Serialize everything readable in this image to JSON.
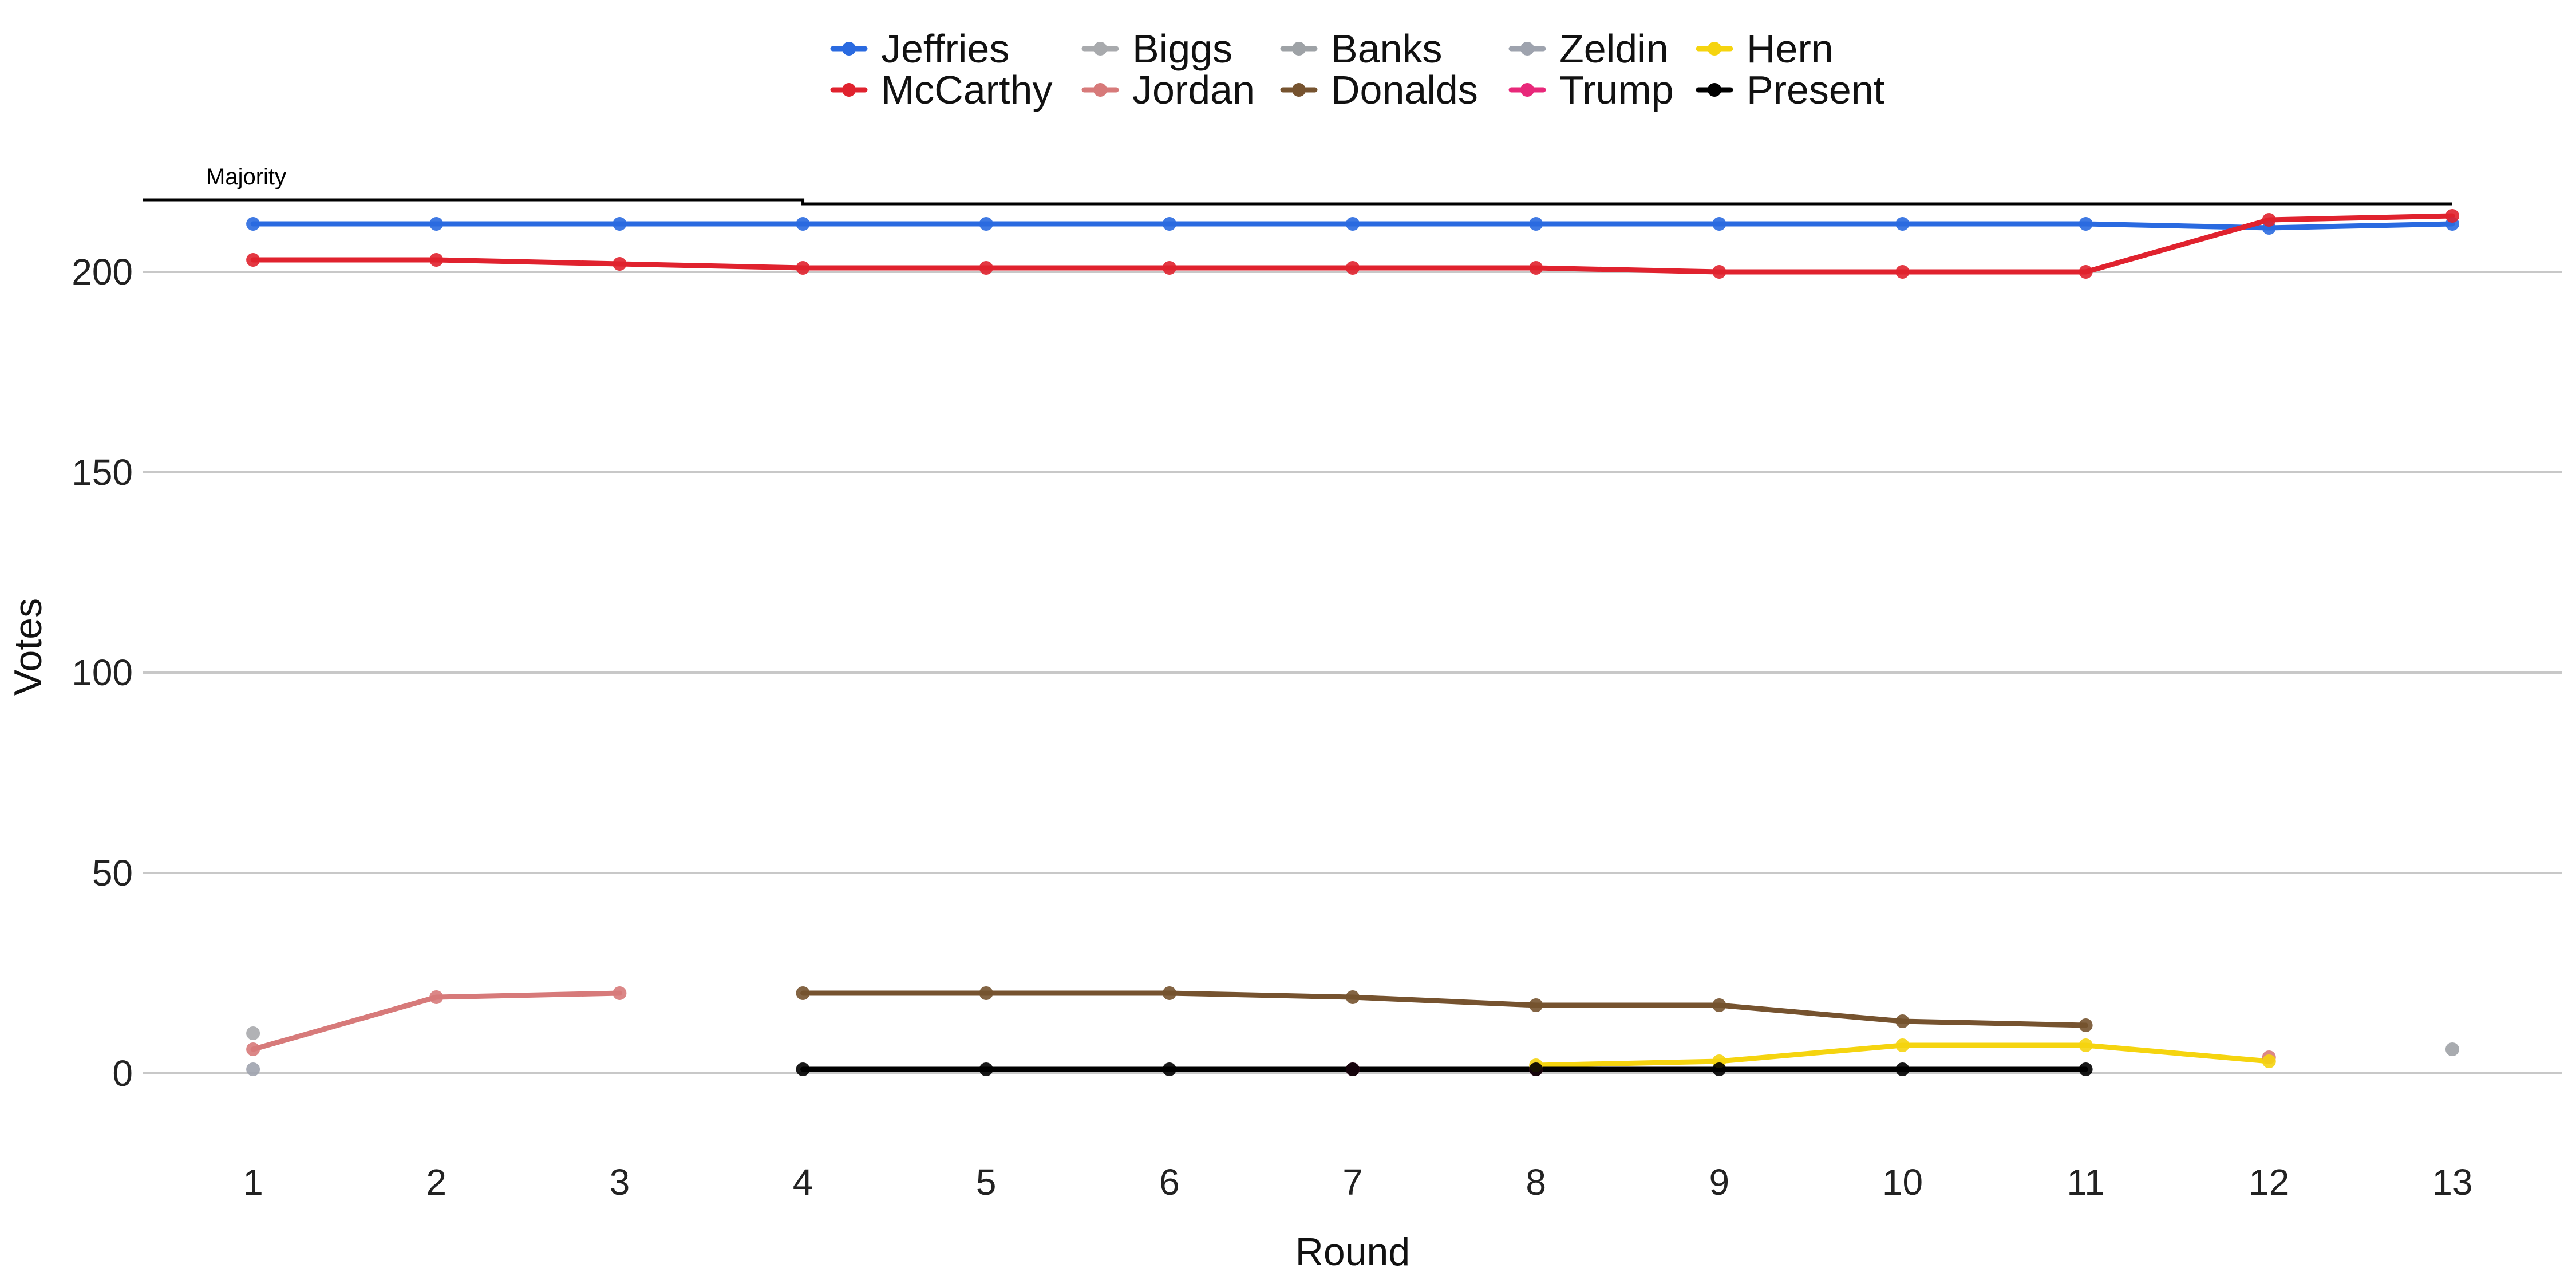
{
  "chart_data": {
    "type": "line",
    "xlabel": "Round",
    "ylabel": "Votes",
    "x": [
      1,
      2,
      3,
      4,
      5,
      6,
      7,
      8,
      9,
      10,
      11,
      12,
      13
    ],
    "xlim": [
      0.4,
      13.6
    ],
    "ylim": [
      -15,
      225
    ],
    "yticks": [
      0,
      50,
      100,
      150,
      200
    ],
    "grid": "horizontal",
    "legend_position": "top",
    "majority": {
      "label": "Majority",
      "segments": [
        {
          "x_from": 0.4,
          "x_to": 4,
          "value": 218
        },
        {
          "x_from": 4,
          "x_to": 13,
          "value": 217
        }
      ]
    },
    "series": [
      {
        "name": "Jeffries",
        "color": "#2a6ae0",
        "line": true,
        "points": [
          [
            1,
            212
          ],
          [
            2,
            212
          ],
          [
            3,
            212
          ],
          [
            4,
            212
          ],
          [
            5,
            212
          ],
          [
            6,
            212
          ],
          [
            7,
            212
          ],
          [
            8,
            212
          ],
          [
            9,
            212
          ],
          [
            10,
            212
          ],
          [
            11,
            212
          ],
          [
            12,
            211
          ],
          [
            13,
            212
          ]
        ]
      },
      {
        "name": "McCarthy",
        "color": "#e0222e",
        "line": true,
        "points": [
          [
            1,
            203
          ],
          [
            2,
            203
          ],
          [
            3,
            202
          ],
          [
            4,
            201
          ],
          [
            5,
            201
          ],
          [
            6,
            201
          ],
          [
            7,
            201
          ],
          [
            8,
            201
          ],
          [
            9,
            200
          ],
          [
            10,
            200
          ],
          [
            11,
            200
          ],
          [
            12,
            213
          ],
          [
            13,
            214
          ]
        ]
      },
      {
        "name": "Biggs",
        "color": "#a8aaad",
        "line": true,
        "points": [
          [
            1,
            10
          ]
        ]
      },
      {
        "name": "Jordan",
        "color": "#d77a7a",
        "line": true,
        "points": [
          [
            1,
            6
          ],
          [
            2,
            19
          ],
          [
            3,
            20
          ],
          [
            12,
            4
          ]
        ]
      },
      {
        "name": "Banks",
        "color": "#9ea2a6",
        "line": true,
        "points": [
          [
            13,
            6
          ]
        ]
      },
      {
        "name": "Donalds",
        "color": "#76532f",
        "line": true,
        "points": [
          [
            4,
            20
          ],
          [
            5,
            20
          ],
          [
            6,
            20
          ],
          [
            7,
            19
          ],
          [
            8,
            17
          ],
          [
            9,
            17
          ],
          [
            10,
            13
          ],
          [
            11,
            12
          ]
        ]
      },
      {
        "name": "Zeldin",
        "color": "#9ea3ae",
        "line": true,
        "points": [
          [
            1,
            1
          ]
        ]
      },
      {
        "name": "Trump",
        "color": "#e8287a",
        "line": true,
        "points": [
          [
            7,
            1
          ],
          [
            8,
            1
          ]
        ]
      },
      {
        "name": "Hern",
        "color": "#f5d40f",
        "line": true,
        "points": [
          [
            8,
            2
          ],
          [
            9,
            3
          ],
          [
            10,
            7
          ],
          [
            11,
            7
          ],
          [
            12,
            3
          ]
        ]
      },
      {
        "name": "Present",
        "color": "#000000",
        "line": true,
        "points": [
          [
            4,
            1
          ],
          [
            5,
            1
          ],
          [
            6,
            1
          ],
          [
            7,
            1
          ],
          [
            8,
            1
          ],
          [
            9,
            1
          ],
          [
            10,
            1
          ],
          [
            11,
            1
          ]
        ]
      }
    ]
  }
}
